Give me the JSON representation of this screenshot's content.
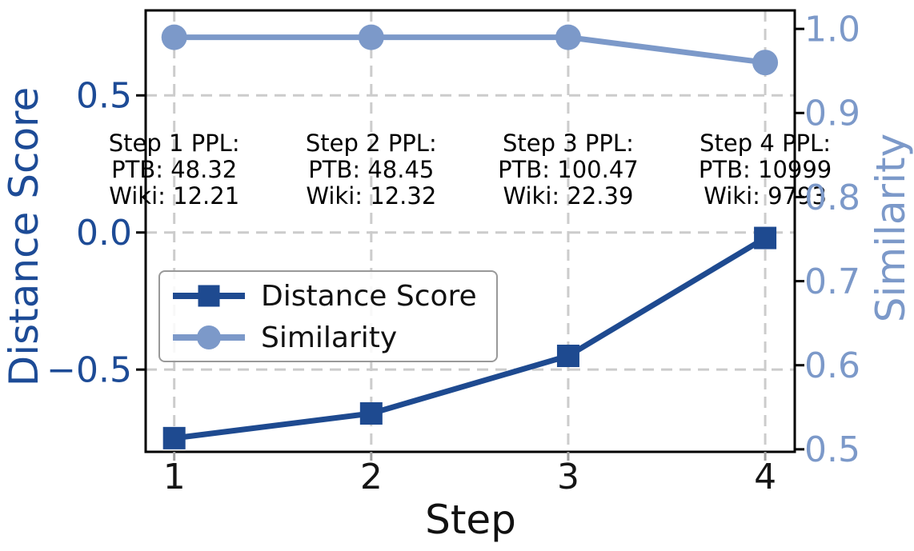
{
  "chart_data": {
    "type": "line",
    "title": "",
    "xlabel": "Step",
    "x": [
      1,
      2,
      3,
      4
    ],
    "x_tick_labels": [
      "1",
      "2",
      "3",
      "4"
    ],
    "x_range": [
      0.855,
      4.15
    ],
    "series": [
      {
        "name": "Distance Score",
        "axis": "left",
        "marker": "square",
        "color": "#1e4a90",
        "values": [
          -0.75,
          -0.66,
          -0.45,
          -0.02
        ]
      },
      {
        "name": "Similarity",
        "axis": "right",
        "marker": "circle",
        "color": "#7c99c9",
        "values": [
          0.99,
          0.99,
          0.99,
          0.96
        ]
      }
    ],
    "left_axis": {
      "label": "Distance Score",
      "color": "#1d4b96",
      "ticks": [
        0.5,
        0.0,
        -0.5
      ],
      "tick_labels": [
        "0.5",
        "0.0",
        "−0.5"
      ],
      "range": [
        -0.8,
        0.81
      ]
    },
    "right_axis": {
      "label": "Similarity",
      "color": "#7c99c9",
      "ticks": [
        1.0,
        0.9,
        0.8,
        0.7,
        0.6,
        0.5
      ],
      "tick_labels": [
        "1.0",
        "0.9",
        "0.8",
        "0.7",
        "0.6",
        "0.5"
      ],
      "range": [
        0.497,
        1.022
      ]
    },
    "grid": {
      "show": true,
      "style": "dashed",
      "color": "#cccccc"
    },
    "legend": {
      "position": "center left",
      "items": [
        "Distance Score",
        "Similarity"
      ]
    },
    "annotations": [
      {
        "x": 1,
        "lines": [
          "Step 1 PPL:",
          "PTB: 48.32",
          "Wiki: 12.21"
        ]
      },
      {
        "x": 2,
        "lines": [
          "Step 2 PPL:",
          "PTB: 48.45",
          "Wiki: 12.32"
        ]
      },
      {
        "x": 3,
        "lines": [
          "Step 3 PPL:",
          "PTB: 100.47",
          "Wiki: 22.39"
        ]
      },
      {
        "x": 4,
        "lines": [
          "Step 4 PPL:",
          "PTB: 10999",
          "Wiki: 9793"
        ]
      }
    ]
  }
}
